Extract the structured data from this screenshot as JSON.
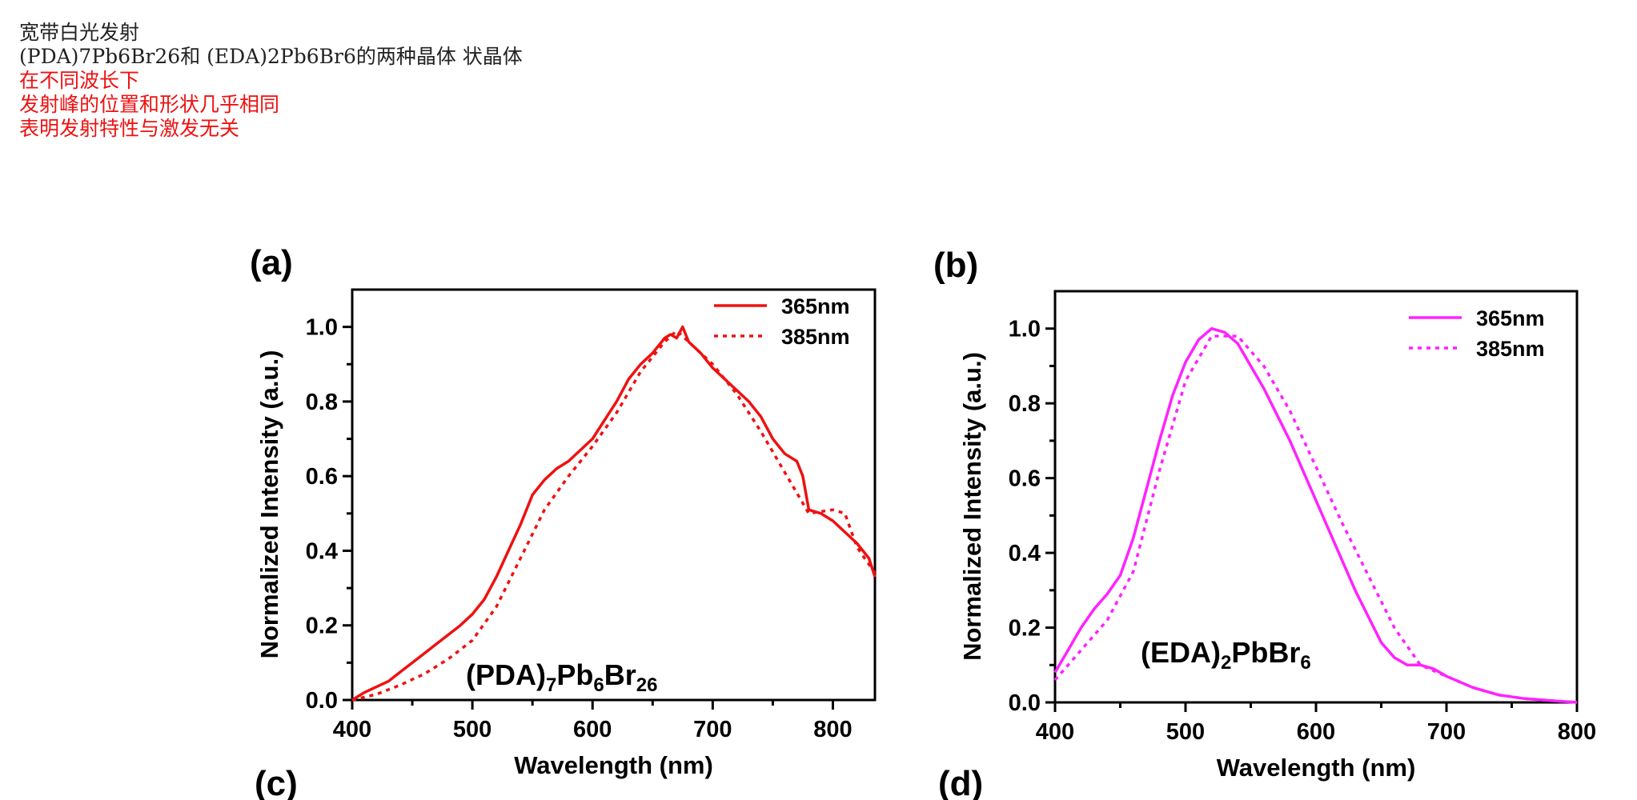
{
  "notes": {
    "line1": "宽带白光发射",
    "line2": "(PDA)7Pb6Br26和 (EDA)2Pb6Br6的两种晶体 状晶体",
    "line3": "在不同波长下",
    "line4": "发射峰的位置和形状几乎相同",
    "line5": "表明发射特性与激发无关"
  },
  "panels": {
    "a": "(a)",
    "b": "(b)",
    "c": "(c)",
    "d": "(d)"
  },
  "colors": {
    "red_series": "#ee1111",
    "magenta_series": "#ff22ff"
  },
  "chart_data": [
    {
      "type": "line",
      "panel": "(a)",
      "compound": {
        "p1": "(PDA)",
        "s1": "7",
        "p2": "Pb",
        "s2": "6",
        "p3": "Br",
        "s3": "26"
      },
      "xlabel": "Wavelength (nm)",
      "ylabel": "Normalized Intensity (a.u.)",
      "xlim": [
        400,
        835
      ],
      "ylim": [
        0,
        1.1
      ],
      "xticks": [
        "400",
        "500",
        "600",
        "700",
        "800"
      ],
      "yticks": [
        "0.0",
        "0.2",
        "0.4",
        "0.6",
        "0.8",
        "1.0"
      ],
      "legend_position": "top-right",
      "series": [
        {
          "name": "365nm",
          "style": "solid",
          "x": [
            400,
            410,
            420,
            430,
            440,
            450,
            460,
            470,
            480,
            490,
            500,
            510,
            520,
            530,
            540,
            550,
            560,
            570,
            580,
            590,
            600,
            610,
            620,
            630,
            640,
            650,
            660,
            665,
            670,
            675,
            680,
            690,
            700,
            710,
            720,
            730,
            740,
            750,
            760,
            770,
            775,
            780,
            790,
            800,
            810,
            820,
            830,
            835
          ],
          "y": [
            0.0,
            0.02,
            0.035,
            0.05,
            0.075,
            0.1,
            0.125,
            0.15,
            0.175,
            0.2,
            0.23,
            0.27,
            0.33,
            0.4,
            0.47,
            0.55,
            0.59,
            0.62,
            0.64,
            0.67,
            0.7,
            0.75,
            0.8,
            0.86,
            0.9,
            0.93,
            0.97,
            0.98,
            0.97,
            1.0,
            0.96,
            0.93,
            0.89,
            0.86,
            0.83,
            0.8,
            0.76,
            0.7,
            0.66,
            0.64,
            0.6,
            0.51,
            0.5,
            0.48,
            0.45,
            0.42,
            0.38,
            0.33
          ]
        },
        {
          "name": "385nm",
          "style": "dotted",
          "x": [
            400,
            420,
            440,
            460,
            480,
            500,
            520,
            540,
            560,
            580,
            600,
            620,
            640,
            660,
            670,
            680,
            700,
            720,
            740,
            760,
            780,
            800,
            810,
            820,
            835
          ],
          "y": [
            0.0,
            0.015,
            0.04,
            0.07,
            0.11,
            0.16,
            0.25,
            0.38,
            0.51,
            0.6,
            0.68,
            0.77,
            0.88,
            0.96,
            0.99,
            0.96,
            0.9,
            0.82,
            0.72,
            0.61,
            0.5,
            0.51,
            0.5,
            0.41,
            0.34
          ]
        }
      ]
    },
    {
      "type": "line",
      "panel": "(b)",
      "compound": {
        "p1": "(EDA)",
        "s1": "2",
        "p2": "PbBr",
        "s2": "6",
        "p3": "",
        "s3": ""
      },
      "xlabel": "Wavelength (nm)",
      "ylabel": "Normalized Intensity (a.u.)",
      "xlim": [
        400,
        800
      ],
      "ylim": [
        0,
        1.1
      ],
      "xticks": [
        "400",
        "500",
        "600",
        "700",
        "800"
      ],
      "yticks": [
        "0.0",
        "0.2",
        "0.4",
        "0.6",
        "0.8",
        "1.0"
      ],
      "legend_position": "top-right",
      "series": [
        {
          "name": "365nm",
          "style": "solid",
          "x": [
            400,
            410,
            420,
            430,
            440,
            450,
            460,
            470,
            480,
            490,
            500,
            510,
            520,
            530,
            540,
            550,
            560,
            570,
            580,
            590,
            600,
            610,
            620,
            630,
            640,
            650,
            660,
            670,
            680,
            690,
            700,
            720,
            740,
            760,
            780,
            800
          ],
          "y": [
            0.08,
            0.14,
            0.2,
            0.25,
            0.29,
            0.34,
            0.44,
            0.57,
            0.7,
            0.82,
            0.91,
            0.97,
            1.0,
            0.99,
            0.96,
            0.9,
            0.84,
            0.77,
            0.7,
            0.62,
            0.54,
            0.46,
            0.38,
            0.3,
            0.23,
            0.16,
            0.12,
            0.1,
            0.1,
            0.09,
            0.07,
            0.04,
            0.02,
            0.01,
            0.005,
            0.0
          ]
        },
        {
          "name": "385nm",
          "style": "dotted",
          "x": [
            400,
            420,
            440,
            460,
            480,
            500,
            520,
            540,
            560,
            580,
            600,
            620,
            640,
            660,
            680,
            700,
            720,
            740,
            760,
            780,
            800
          ],
          "y": [
            0.06,
            0.14,
            0.22,
            0.35,
            0.62,
            0.86,
            0.98,
            0.98,
            0.9,
            0.78,
            0.63,
            0.48,
            0.34,
            0.2,
            0.1,
            0.07,
            0.04,
            0.02,
            0.01,
            0.005,
            0.0
          ]
        }
      ]
    }
  ]
}
